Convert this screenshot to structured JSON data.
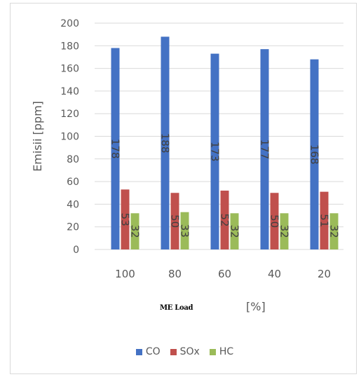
{
  "chart_data": {
    "type": "bar",
    "title": "",
    "xlabel": "ME Load",
    "xlabel_unit": "[%]",
    "ylabel": "Emisii [ppm]",
    "ylim": [
      0,
      200
    ],
    "yticks": [
      0,
      20,
      40,
      60,
      80,
      100,
      120,
      140,
      160,
      180,
      200
    ],
    "grid": true,
    "legend": "bottom",
    "categories": [
      "100",
      "80",
      "60",
      "40",
      "20"
    ],
    "series": [
      {
        "name": "CO",
        "color": "#4472C4",
        "values": [
          178,
          188,
          173,
          177,
          168
        ]
      },
      {
        "name": "SOx",
        "color": "#C0504D",
        "values": [
          53,
          50,
          52,
          50,
          51
        ]
      },
      {
        "name": "HC",
        "color": "#9BBB59",
        "values": [
          32,
          33,
          32,
          32,
          32
        ]
      }
    ]
  }
}
